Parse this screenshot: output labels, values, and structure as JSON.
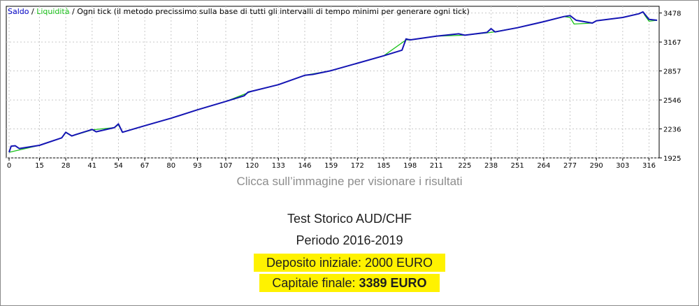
{
  "legend": {
    "saldo": "Saldo",
    "sep1": " / ",
    "liquidita": "Liquidità",
    "sep2": " / ",
    "model": "Ogni tick (il metodo precissimo sulla base di tutti gli intervalli di tempo minimi per generare ogni tick)"
  },
  "colors": {
    "saldo_line": "#1414b4",
    "liquidita_line": "#19c219",
    "grid": "#c8c8c8",
    "highlight": "#fff200"
  },
  "chart_data": {
    "type": "line",
    "x_ticks": [
      "0",
      "15",
      "28",
      "41",
      "54",
      "67",
      "80",
      "93",
      "107",
      "120",
      "133",
      "146",
      "159",
      "172",
      "185",
      "198",
      "211",
      "225",
      "238",
      "251",
      "264",
      "277",
      "290",
      "303",
      "316"
    ],
    "y_ticks": [
      "1925",
      "2236",
      "2546",
      "2857",
      "3167",
      "3478"
    ],
    "xlim": [
      0,
      321
    ],
    "ylim": [
      1925,
      3520
    ],
    "grid": true,
    "series": [
      {
        "name": "Saldo",
        "x": [
          0,
          1,
          3,
          5,
          15,
          26,
          28,
          31,
          33,
          41,
          43,
          52,
          54,
          56,
          67,
          80,
          93,
          107,
          116,
          118,
          120,
          133,
          146,
          150,
          159,
          172,
          185,
          194,
          196,
          198,
          211,
          222,
          225,
          236,
          238,
          240,
          251,
          264,
          274,
          277,
          280,
          288,
          290,
          303,
          311,
          313,
          316,
          320
        ],
        "y": [
          1985,
          2050,
          2055,
          2025,
          2060,
          2140,
          2200,
          2160,
          2175,
          2230,
          2205,
          2250,
          2290,
          2200,
          2270,
          2350,
          2440,
          2530,
          2590,
          2630,
          2640,
          2710,
          2810,
          2820,
          2860,
          2940,
          3020,
          3080,
          3200,
          3190,
          3230,
          3255,
          3240,
          3270,
          3310,
          3275,
          3320,
          3385,
          3440,
          3450,
          3400,
          3370,
          3395,
          3430,
          3470,
          3490,
          3410,
          3400
        ]
      },
      {
        "name": "Liquidità",
        "x": [
          0,
          15,
          26,
          28,
          31,
          41,
          52,
          54,
          56,
          67,
          80,
          93,
          107,
          120,
          133,
          146,
          159,
          172,
          185,
          196,
          198,
          211,
          225,
          238,
          251,
          264,
          274,
          277,
          279,
          288,
          290,
          303,
          311,
          313,
          314,
          316,
          320
        ],
        "y": [
          1985,
          2060,
          2140,
          2195,
          2160,
          2225,
          2250,
          2280,
          2200,
          2270,
          2350,
          2440,
          2530,
          2640,
          2710,
          2810,
          2860,
          2940,
          3020,
          3190,
          3190,
          3230,
          3240,
          3270,
          3320,
          3385,
          3440,
          3430,
          3360,
          3370,
          3395,
          3430,
          3470,
          3490,
          3450,
          3390,
          3400
        ]
      }
    ]
  },
  "caption": {
    "hint": "Clicca sull’immagine per visionare i risultati",
    "title": "Test Storico AUD/CHF",
    "period": "Periodo 2016-2019",
    "deposit": "Deposito iniziale: 2000 EURO",
    "final_label": "Capitale finale: ",
    "final_value": "3389 EURO"
  }
}
